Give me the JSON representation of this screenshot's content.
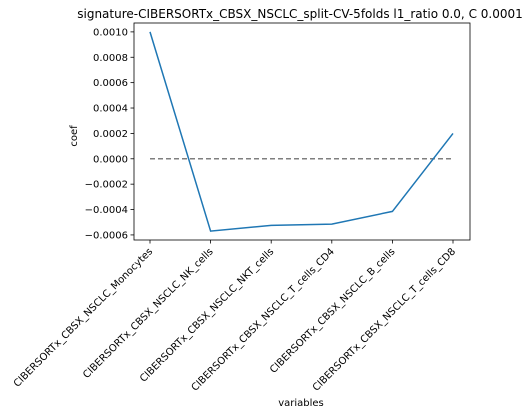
{
  "chart_data": {
    "type": "line",
    "title": "signature-CIBERSORTx_CBSX_NSCLC_split-CV-5folds l1_ratio 0.0, C 0.0001",
    "xlabel": "variables",
    "ylabel": "coef",
    "categories": [
      "CIBERSORTx_CBSX_NSCLC_Monocytes",
      "CIBERSORTx_CBSX_NSCLC_NK_cells",
      "CIBERSORTx_CBSX_NSCLC_NKT_cells",
      "CIBERSORTx_CBSX_NSCLC_T_cells_CD4",
      "CIBERSORTx_CBSX_NSCLC_B_cells",
      "CIBERSORTx_CBSX_NSCLC_T_cells_CD8"
    ],
    "series": [
      {
        "values": [
          0.001,
          -0.00057,
          -0.000525,
          -0.000515,
          -0.000415,
          0.0002
        ],
        "color": "#1f77b4"
      }
    ],
    "reference_line": {
      "y": 0.0,
      "style": "dashed",
      "color": "#7f7f7f"
    },
    "yticks": [
      "0.0010",
      "0.0008",
      "0.0006",
      "0.0004",
      "0.0002",
      "0.0000",
      "−0.0002",
      "−0.0004",
      "−0.0006"
    ],
    "ylim": [
      -0.00064,
      0.00107
    ],
    "grid": false,
    "legend": "none"
  }
}
